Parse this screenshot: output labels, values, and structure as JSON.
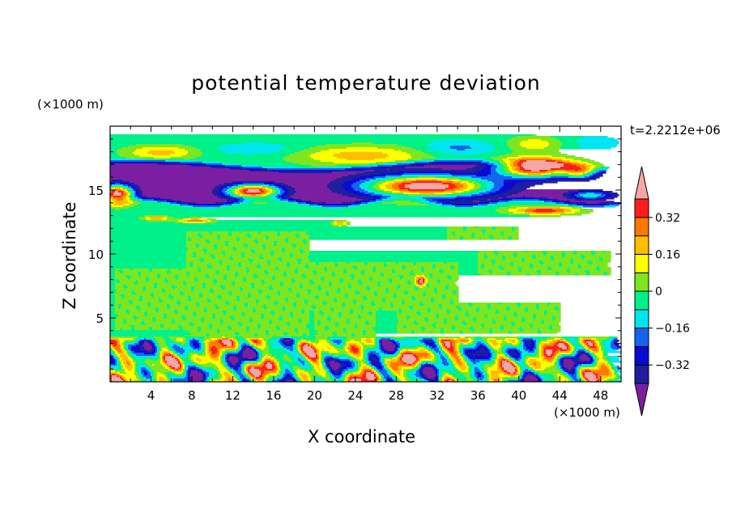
{
  "chart_data": {
    "type": "heatmap",
    "title": "potential temperature deviation",
    "xlabel": "X coordinate",
    "ylabel": "Z coordinate",
    "x_scale_label": "(×1000 m)",
    "y_scale_label": "(×1000 m)",
    "time_label": "t=2.2212e+06",
    "xlim": [
      0,
      50
    ],
    "ylim": [
      0,
      20
    ],
    "x_ticks": [
      4,
      8,
      12,
      16,
      20,
      24,
      28,
      32,
      36,
      40,
      44,
      48
    ],
    "y_ticks": [
      5,
      10,
      15
    ],
    "x_tick_labels": [
      "4",
      "8",
      "12",
      "16",
      "20",
      "24",
      "28",
      "32",
      "36",
      "40",
      "44",
      "48"
    ],
    "y_tick_labels": [
      "5",
      "10",
      "15"
    ],
    "colorbar": {
      "levels": [
        -0.48,
        -0.4,
        -0.32,
        -0.24,
        -0.16,
        -0.08,
        0,
        0.08,
        0.16,
        0.24,
        0.32,
        0.4
      ],
      "colors": [
        "#7a1fa2",
        "#1f1f9e",
        "#0a0ad2",
        "#1464f0",
        "#00e6f0",
        "#00f08a",
        "#7ee61e",
        "#ffff00",
        "#ffbe00",
        "#ff7800",
        "#ff1e1e",
        "#f7a6a6"
      ],
      "labels": [
        {
          "value": -0.32,
          "text": "−0.32"
        },
        {
          "value": -0.16,
          "text": "−0.16"
        },
        {
          "value": 0,
          "text": "0"
        },
        {
          "value": 0.16,
          "text": "0.16"
        },
        {
          "value": 0.32,
          "text": "0.32"
        }
      ]
    },
    "field_structure": {
      "background_value": -0.04,
      "features": [
        {
          "kind": "band",
          "z": [
            14.2,
            16.8
          ],
          "value": -0.42,
          "note": "upper negative layer"
        },
        {
          "kind": "blob",
          "x": 4.5,
          "z": 17.9,
          "rx": 3.2,
          "rz": 0.6,
          "value": 0.2
        },
        {
          "kind": "blob",
          "x": 24,
          "z": 17.6,
          "rx": 6.5,
          "rz": 0.8,
          "value": 0.22
        },
        {
          "kind": "blob",
          "x": 41.5,
          "z": 16.6,
          "rx": 4.0,
          "rz": 0.9,
          "value": 0.44
        },
        {
          "kind": "blob",
          "x": 31,
          "z": 15.3,
          "rx": 6.5,
          "rz": 0.9,
          "value": 0.45
        },
        {
          "kind": "blob",
          "x": 14,
          "z": 14.9,
          "rx": 3.0,
          "rz": 0.6,
          "value": 0.44
        },
        {
          "kind": "blob",
          "x": 0.8,
          "z": 14.7,
          "rx": 1.6,
          "rz": 0.7,
          "value": 0.44
        },
        {
          "kind": "region",
          "x": [
            8,
            20
          ],
          "z": [
            3.6,
            11.8
          ],
          "value": 0.02
        },
        {
          "kind": "region",
          "x": [
            18,
            36
          ],
          "z": [
            5.5,
            9.5
          ],
          "value": 0.02
        },
        {
          "kind": "region",
          "x": [
            36,
            49
          ],
          "z": [
            8.3,
            10.3
          ],
          "value": 0.02
        },
        {
          "kind": "band",
          "z": [
            0,
            3.5
          ],
          "value": "turbulent",
          "note": "mixed -0.48..0.48 near surface"
        }
      ]
    }
  }
}
